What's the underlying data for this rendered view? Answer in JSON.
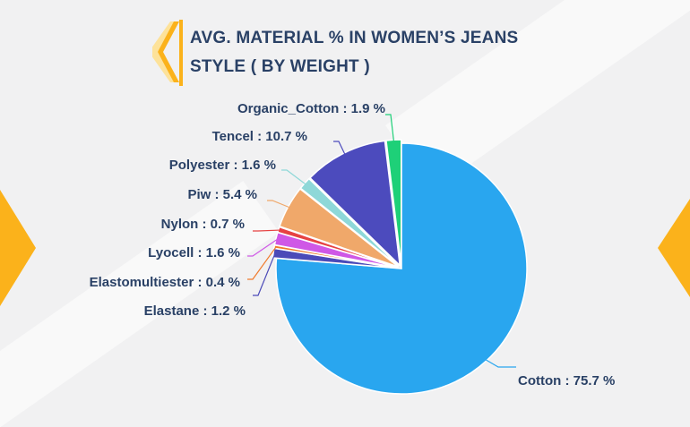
{
  "title": {
    "line1": "AVG. MATERIAL % IN WOMEN’S JEANS",
    "line2": "STYLE ( BY WEIGHT )"
  },
  "colors": {
    "accent": "#fbb21b",
    "title": "#2a4166",
    "background": "#f1f1f2"
  },
  "chart_data": {
    "type": "pie",
    "title": "AVG. MATERIAL % IN WOMEN’S JEANS STYLE ( BY WEIGHT )",
    "legend": "none",
    "slices": [
      {
        "name": "Cotton",
        "value": 75.7,
        "label": "Cotton : 75.7 %",
        "color": "#29a6ef"
      },
      {
        "name": "Elastane",
        "value": 1.2,
        "label": "Elastane : 1.2 %",
        "color": "#4b4ab8"
      },
      {
        "name": "Elastomultiester",
        "value": 0.4,
        "label": "Elastomultiester : 0.4 %",
        "color": "#f07a2c"
      },
      {
        "name": "Lyocell",
        "value": 1.6,
        "label": "Lyocell : 1.6 %",
        "color": "#cf58e6"
      },
      {
        "name": "Nylon",
        "value": 0.7,
        "label": "Nylon : 0.7 %",
        "color": "#e64242"
      },
      {
        "name": "Piw",
        "value": 5.4,
        "label": "Piw : 5.4 %",
        "color": "#f0a86a"
      },
      {
        "name": "Polyester",
        "value": 1.6,
        "label": "Polyester : 1.6 %",
        "color": "#8ed8d8"
      },
      {
        "name": "Tencel",
        "value": 10.7,
        "label": "Tencel : 10.7 %",
        "color": "#4c4bbd"
      },
      {
        "name": "Organic_Cotton",
        "value": 1.9,
        "label": "Organic_Cotton : 1.9 %",
        "color": "#1ed078"
      }
    ]
  }
}
